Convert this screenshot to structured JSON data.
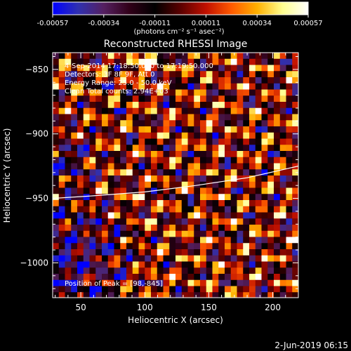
{
  "colorbar": {
    "ticks": [
      "-0.00057",
      "-0.00034",
      "-0.00011",
      "0.00011",
      "0.00034",
      "0.00057"
    ],
    "unit_label": "(photons cm⁻² s⁻¹ asec⁻²)",
    "stops": [
      "#0000ff",
      "#3030b0",
      "#552060",
      "#300018",
      "#000000",
      "#5a0000",
      "#c01000",
      "#ff5a00",
      "#ffb000",
      "#ffff90",
      "#ffffff"
    ]
  },
  "title": "Reconstructed RHESSI Image",
  "annotations": {
    "time": "4-Sep-2014 17:18:50.000 to 17:19:50.000",
    "detectors": "Detectors: 3F 8F 9F, Att 0",
    "energy": "Energy Range: 25.0 - 50.0 keV",
    "clean": "Clean    Total counts: 2.94E+03",
    "peak": "Position of Peak = [98,-845]"
  },
  "footer_date": "2-Jun-2019 06:15",
  "chart_data": {
    "type": "heatmap",
    "title": "Reconstructed RHESSI Image",
    "xlabel": "Heliocentric X (arcsec)",
    "ylabel": "Heliocentric Y (arcsec)",
    "xlim": [
      28,
      220
    ],
    "ylim": [
      -1027,
      -837
    ],
    "xticks": [
      50,
      100,
      150,
      200
    ],
    "yticks": [
      -850,
      -900,
      -950,
      -1000
    ],
    "xtick_labels": [
      "50",
      "100",
      "150",
      "200"
    ],
    "ytick_labels": [
      "−850",
      "−900",
      "−950",
      "−1000"
    ],
    "value_range": [
      -0.00057,
      0.00057
    ],
    "peak_position": [
      98,
      -845
    ],
    "limb_curve": {
      "x": [
        28,
        60,
        100,
        140,
        180,
        220
      ],
      "y": [
        -950,
        -948,
        -945,
        -940,
        -934,
        -925
      ]
    }
  }
}
